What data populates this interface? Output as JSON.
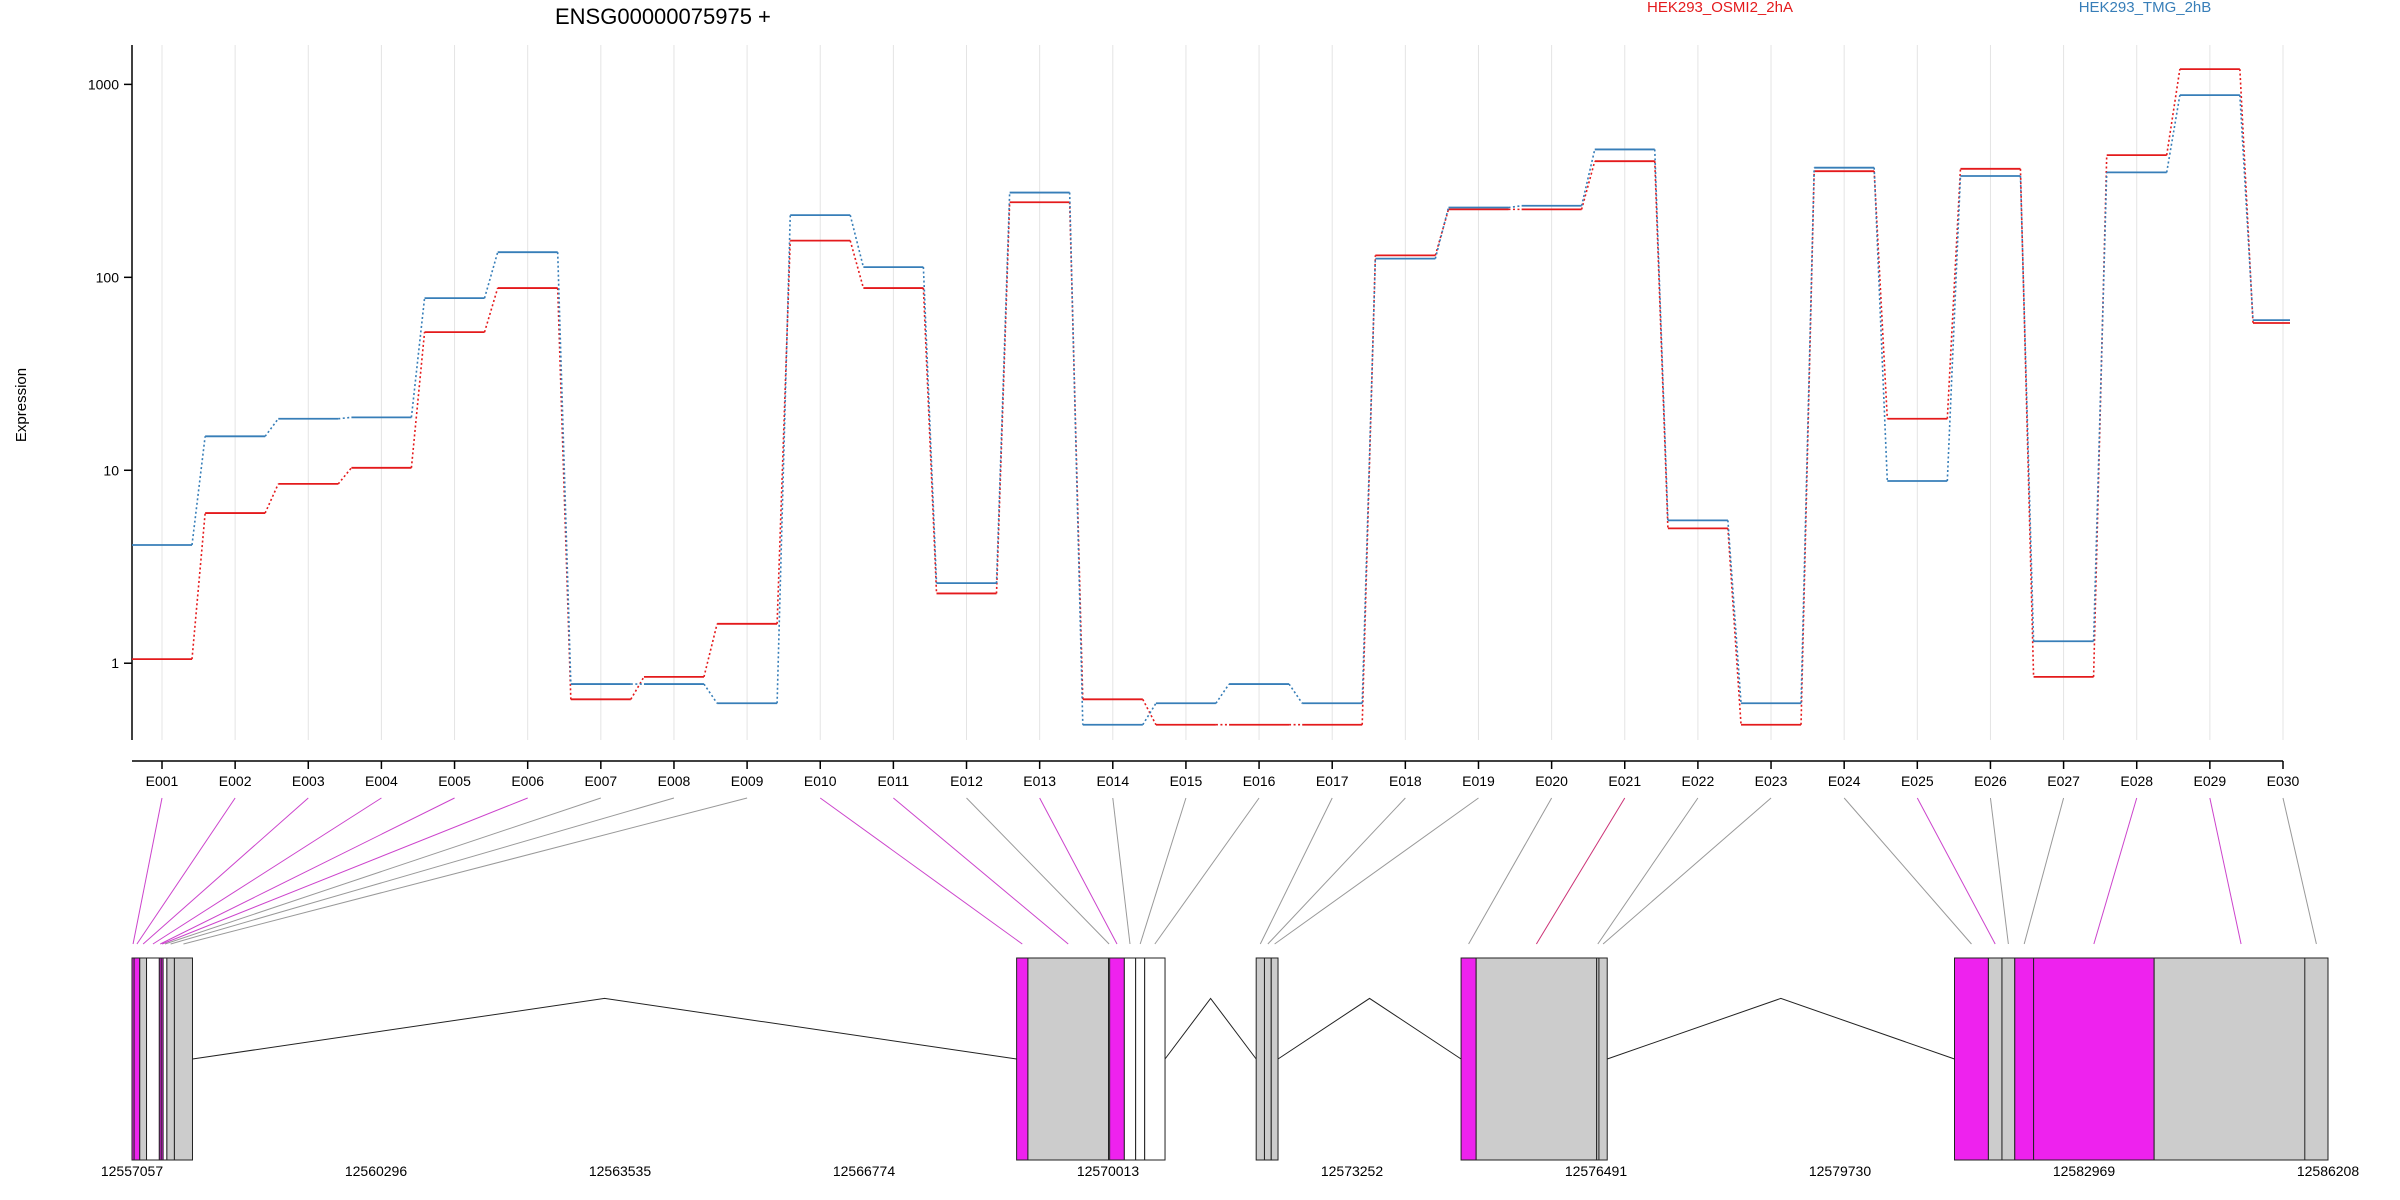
{
  "title": "ENSG00000075975 +",
  "ylabel": "Expression",
  "chart_data": {
    "type": "line",
    "title": "ENSG00000075975 +",
    "ylabel": "Expression",
    "yscale": "log",
    "ylim": [
      0.4,
      1600
    ],
    "yticks": [
      1,
      10,
      100,
      1000
    ],
    "ytick_labels": [
      "1",
      "10",
      "100",
      "1000"
    ],
    "categories": [
      "E001",
      "E002",
      "E003",
      "E004",
      "E005",
      "E006",
      "E007",
      "E008",
      "E009",
      "E010",
      "E011",
      "E012",
      "E013",
      "E014",
      "E015",
      "E016",
      "E017",
      "E018",
      "E019",
      "E020",
      "E021",
      "E022",
      "E023",
      "E024",
      "E025",
      "E026",
      "E027",
      "E028",
      "E029",
      "E030"
    ],
    "series": [
      {
        "name": "HEK293_OSMI2_2hA",
        "color": "#e41a1c",
        "values": [
          1.05,
          6,
          8.5,
          10.3,
          52,
          88,
          0.65,
          0.85,
          1.6,
          155,
          88,
          2.3,
          245,
          0.65,
          0.48,
          0.48,
          0.48,
          130,
          225,
          225,
          400,
          5,
          0.48,
          355,
          18.5,
          365,
          0.85,
          430,
          1200,
          58
        ]
      },
      {
        "name": "HEK293_TMG_2hB",
        "color": "#377eb8",
        "values": [
          4.1,
          15,
          18.5,
          18.8,
          78,
          135,
          0.78,
          0.78,
          0.62,
          210,
          113,
          2.6,
          275,
          0.48,
          0.62,
          0.78,
          0.62,
          125,
          230,
          235,
          460,
          5.5,
          0.62,
          370,
          8.8,
          335,
          1.3,
          350,
          880,
          60
        ]
      }
    ],
    "genomic_axis": {
      "tick_labels": [
        "12557057",
        "12560296",
        "12563535",
        "12566774",
        "12570013",
        "12573252",
        "12576491",
        "12579730",
        "12582969",
        "12586208"
      ],
      "range": [
        12557057,
        12586208
      ]
    },
    "exons": [
      {
        "id": "E001",
        "start": 12557057,
        "end": 12557085,
        "color": "#ee22ee"
      },
      {
        "id": "E002",
        "start": 12557085,
        "end": 12557160,
        "color": "#ee22ee"
      },
      {
        "id": "E003",
        "start": 12557160,
        "end": 12557250,
        "color": "#cccccc"
      },
      {
        "id": "E004",
        "start": 12557250,
        "end": 12557420,
        "color": "#ffffff"
      },
      {
        "id": "E005",
        "start": 12557420,
        "end": 12557445,
        "color": "#ee22ee"
      },
      {
        "id": "E006",
        "start": 12557445,
        "end": 12557470,
        "color": "#ee22ee"
      },
      {
        "id": "E007",
        "start": 12557470,
        "end": 12557520,
        "color": "#ffffff"
      },
      {
        "id": "E008",
        "start": 12557520,
        "end": 12557620,
        "color": "#cccccc"
      },
      {
        "id": "E009",
        "start": 12557620,
        "end": 12557860,
        "color": "#cccccc"
      },
      {
        "id": "E010",
        "start": 12568800,
        "end": 12568950,
        "color": "#ee22ee"
      },
      {
        "id": "E011",
        "start": 12568950,
        "end": 12570020,
        "color": "#cccccc"
      },
      {
        "id": "E012",
        "start": 12570020,
        "end": 12570035,
        "color": "#cccccc"
      },
      {
        "id": "E013",
        "start": 12570035,
        "end": 12570230,
        "color": "#ee22ee"
      },
      {
        "id": "E014",
        "start": 12570230,
        "end": 12570380,
        "color": "#ffffff"
      },
      {
        "id": "E015",
        "start": 12570380,
        "end": 12570500,
        "color": "#ffffff"
      },
      {
        "id": "E016",
        "start": 12570500,
        "end": 12570770,
        "color": "#ffffff"
      },
      {
        "id": "E017",
        "start": 12571980,
        "end": 12572090,
        "color": "#cccccc"
      },
      {
        "id": "E018",
        "start": 12572090,
        "end": 12572180,
        "color": "#cccccc"
      },
      {
        "id": "E019",
        "start": 12572180,
        "end": 12572270,
        "color": "#cccccc"
      },
      {
        "id": "E020",
        "start": 12574700,
        "end": 12574900,
        "color": "#ee22ee"
      },
      {
        "id": "E021",
        "start": 12574900,
        "end": 12576500,
        "color": "#cccccc"
      },
      {
        "id": "E022",
        "start": 12576500,
        "end": 12576530,
        "color": "#cccccc"
      },
      {
        "id": "E023",
        "start": 12576530,
        "end": 12576640,
        "color": "#cccccc"
      },
      {
        "id": "E024",
        "start": 12581250,
        "end": 12581700,
        "color": "#ee22ee"
      },
      {
        "id": "E025",
        "start": 12581700,
        "end": 12581880,
        "color": "#cccccc"
      },
      {
        "id": "E026",
        "start": 12581880,
        "end": 12582050,
        "color": "#cccccc"
      },
      {
        "id": "E027",
        "start": 12582050,
        "end": 12582300,
        "color": "#ee22ee"
      },
      {
        "id": "E028",
        "start": 12582300,
        "end": 12583900,
        "color": "#ee22ee"
      },
      {
        "id": "E029",
        "start": 12583900,
        "end": 12586208,
        "color": "#cccccc"
      },
      {
        "id": "E030",
        "start": 12585900,
        "end": 12586208,
        "color": "#cccccc"
      }
    ],
    "connector_colors": [
      "#cc44cc",
      "#cc44cc",
      "#cc44cc",
      "#cc44cc",
      "#cc44cc",
      "#cc44cc",
      "#999999",
      "#999999",
      "#999999",
      "#cc44cc",
      "#cc44cc",
      "#999999",
      "#cc44cc",
      "#999999",
      "#999999",
      "#999999",
      "#999999",
      "#999999",
      "#999999",
      "#999999",
      "#cc3377",
      "#999999",
      "#999999",
      "#999999",
      "#cc44cc",
      "#999999",
      "#999999",
      "#cc44cc",
      "#cc44cc",
      "#999999"
    ],
    "intron_apex_fraction": 0.3,
    "legend_placement": "top",
    "grid": "vertical"
  }
}
